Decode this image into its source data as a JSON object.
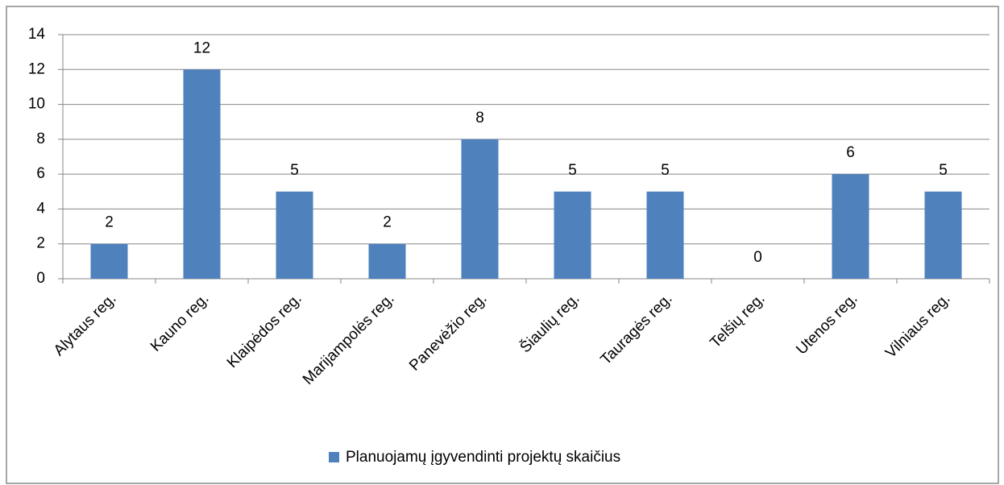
{
  "chart_data": {
    "type": "bar",
    "categories": [
      "Alytaus reg.",
      "Kauno reg.",
      "Klaipėdos reg.",
      "Marijampolės reg.",
      "Panevėžio reg.",
      "Šiaulių reg.",
      "Tauragės reg.",
      "Telšių reg.",
      "Utenos reg.",
      "Vilniaus reg."
    ],
    "series": [
      {
        "name": "Planuojamų įgyvendinti projektų skaičius",
        "color": "#4f81bd",
        "values": [
          2,
          12,
          5,
          2,
          8,
          5,
          5,
          0,
          6,
          5
        ]
      }
    ],
    "ylim": [
      0,
      14
    ],
    "yticks": [
      0,
      2,
      4,
      6,
      8,
      10,
      12,
      14
    ],
    "grid": true,
    "legend": "bottom"
  }
}
